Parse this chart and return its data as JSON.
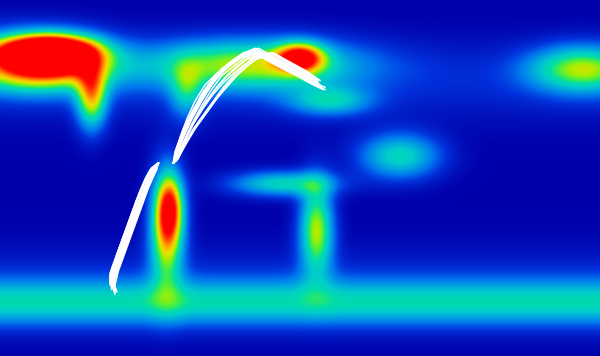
{
  "figsize": [
    6.0,
    3.56
  ],
  "dpi": 100,
  "background_color": "#000000",
  "ocean_cmap_nodes": [
    [
      0.0,
      "#000033"
    ],
    [
      0.12,
      "#000066"
    ],
    [
      0.22,
      "#0000aa"
    ],
    [
      0.32,
      "#0033dd"
    ],
    [
      0.4,
      "#0077ee"
    ],
    [
      0.48,
      "#00aadd"
    ],
    [
      0.54,
      "#00cccc"
    ],
    [
      0.6,
      "#00ddaa"
    ],
    [
      0.66,
      "#44ee44"
    ],
    [
      0.72,
      "#aaee00"
    ],
    [
      0.78,
      "#eedd00"
    ],
    [
      0.84,
      "#ffaa00"
    ],
    [
      0.9,
      "#ff6600"
    ],
    [
      0.96,
      "#ff2200"
    ],
    [
      1.0,
      "#ff0000"
    ]
  ],
  "atlantic_tracks": [
    [
      [
        -76,
        9
      ],
      [
        -74,
        14
      ],
      [
        -72,
        20
      ],
      [
        -68,
        28
      ],
      [
        -63,
        36
      ],
      [
        -57,
        43
      ],
      [
        -50,
        48
      ],
      [
        -43,
        52
      ],
      [
        -36,
        55
      ],
      [
        -28,
        57
      ],
      [
        -18,
        54
      ],
      [
        -8,
        50
      ],
      [
        2,
        46
      ]
    ],
    [
      [
        -76,
        9
      ],
      [
        -73,
        16
      ],
      [
        -69,
        24
      ],
      [
        -63,
        32
      ],
      [
        -57,
        40
      ],
      [
        -50,
        46
      ],
      [
        -43,
        51
      ],
      [
        -35,
        55
      ],
      [
        -25,
        57
      ],
      [
        -15,
        54
      ],
      [
        -4,
        50
      ],
      [
        6,
        46
      ]
    ],
    [
      [
        -76,
        9
      ],
      [
        -74,
        12
      ],
      [
        -70,
        18
      ],
      [
        -65,
        26
      ],
      [
        -59,
        34
      ],
      [
        -53,
        41
      ],
      [
        -47,
        47
      ],
      [
        -40,
        51
      ],
      [
        -33,
        55
      ],
      [
        -24,
        57
      ],
      [
        -14,
        53
      ],
      [
        -3,
        49
      ],
      [
        7,
        45
      ]
    ],
    [
      [
        -76,
        9
      ],
      [
        -75,
        13
      ],
      [
        -71,
        19
      ],
      [
        -66,
        27
      ],
      [
        -60,
        35
      ],
      [
        -54,
        42
      ],
      [
        -48,
        48
      ],
      [
        -42,
        52
      ],
      [
        -35,
        56
      ],
      [
        -26,
        58
      ],
      [
        -16,
        54
      ],
      [
        -5,
        50
      ],
      [
        5,
        46
      ],
      [
        12,
        43
      ]
    ],
    [
      [
        -76,
        9
      ],
      [
        -74,
        11
      ],
      [
        -71,
        16
      ],
      [
        -67,
        22
      ],
      [
        -62,
        29
      ],
      [
        -56,
        36
      ],
      [
        -50,
        42
      ],
      [
        -44,
        47
      ],
      [
        -38,
        51
      ],
      [
        -31,
        55
      ],
      [
        -22,
        56
      ],
      [
        -12,
        52
      ],
      [
        -2,
        48
      ],
      [
        8,
        44
      ]
    ],
    [
      [
        -76,
        9
      ],
      [
        -73,
        15
      ],
      [
        -69,
        22
      ],
      [
        -64,
        30
      ],
      [
        -58,
        38
      ],
      [
        -52,
        44
      ],
      [
        -46,
        49
      ],
      [
        -39,
        53
      ],
      [
        -31,
        57
      ],
      [
        -21,
        55
      ],
      [
        -11,
        51
      ],
      [
        -1,
        47
      ],
      [
        9,
        43
      ],
      [
        15,
        41
      ]
    ],
    [
      [
        -76,
        9
      ],
      [
        -75,
        10
      ],
      [
        -72,
        15
      ],
      [
        -68,
        21
      ],
      [
        -63,
        28
      ],
      [
        -57,
        35
      ],
      [
        -51,
        41
      ],
      [
        -45,
        46
      ],
      [
        -39,
        50
      ],
      [
        -32,
        54
      ],
      [
        -23,
        56
      ],
      [
        -13,
        52
      ],
      [
        -3,
        48
      ],
      [
        7,
        44
      ],
      [
        13,
        42
      ]
    ],
    [
      [
        -76,
        9
      ],
      [
        -74,
        13
      ],
      [
        -70,
        20
      ],
      [
        -65,
        28
      ],
      [
        -59,
        36
      ],
      [
        -53,
        43
      ],
      [
        -47,
        49
      ],
      [
        -41,
        53
      ],
      [
        -34,
        57
      ],
      [
        -25,
        59
      ],
      [
        -15,
        55
      ],
      [
        -4,
        51
      ],
      [
        6,
        47
      ]
    ],
    [
      [
        -76,
        9
      ],
      [
        -72,
        17
      ],
      [
        -67,
        26
      ],
      [
        -61,
        34
      ],
      [
        -55,
        41
      ],
      [
        -49,
        47
      ],
      [
        -43,
        51
      ],
      [
        -37,
        55
      ],
      [
        -28,
        58
      ],
      [
        -18,
        54
      ],
      [
        -8,
        50
      ],
      [
        2,
        46
      ],
      [
        10,
        43
      ]
    ],
    [
      [
        -76,
        9
      ],
      [
        -74,
        10
      ],
      [
        -71,
        14
      ],
      [
        -67,
        19
      ],
      [
        -62,
        25
      ],
      [
        -56,
        31
      ],
      [
        -50,
        37
      ],
      [
        -44,
        42
      ],
      [
        -38,
        47
      ],
      [
        -32,
        51
      ],
      [
        -25,
        55
      ],
      [
        -17,
        57
      ],
      [
        -7,
        53
      ],
      [
        3,
        49
      ],
      [
        11,
        45
      ]
    ],
    [
      [
        -76,
        9
      ],
      [
        -73,
        12
      ],
      [
        -69,
        18
      ],
      [
        -64,
        24
      ],
      [
        -58,
        30
      ],
      [
        -52,
        36
      ],
      [
        -46,
        42
      ],
      [
        -40,
        47
      ],
      [
        -34,
        51
      ],
      [
        -27,
        55
      ],
      [
        -18,
        57
      ],
      [
        -8,
        53
      ],
      [
        2,
        49
      ],
      [
        10,
        45
      ]
    ],
    [
      [
        -76,
        9
      ],
      [
        -74,
        16
      ],
      [
        -70,
        24
      ],
      [
        -64,
        32
      ],
      [
        -58,
        40
      ],
      [
        -52,
        46
      ],
      [
        -45,
        51
      ],
      [
        -38,
        55
      ],
      [
        -29,
        58
      ],
      [
        -19,
        54
      ],
      [
        -9,
        50
      ],
      [
        1,
        46
      ],
      [
        9,
        43
      ]
    ],
    [
      [
        -76,
        9
      ],
      [
        -75,
        14
      ],
      [
        -71,
        21
      ],
      [
        -66,
        29
      ],
      [
        -60,
        37
      ],
      [
        -54,
        43
      ],
      [
        -48,
        49
      ],
      [
        -41,
        53
      ],
      [
        -33,
        57
      ],
      [
        -23,
        55
      ],
      [
        -13,
        51
      ],
      [
        -2,
        47
      ],
      [
        8,
        43
      ],
      [
        14,
        41
      ]
    ],
    [
      [
        -76,
        9
      ],
      [
        -73,
        11
      ],
      [
        -69,
        17
      ],
      [
        -64,
        23
      ],
      [
        -58,
        29
      ],
      [
        -52,
        35
      ],
      [
        -46,
        41
      ],
      [
        -40,
        46
      ],
      [
        -34,
        50
      ],
      [
        -27,
        54
      ],
      [
        -18,
        56
      ],
      [
        -8,
        52
      ],
      [
        2,
        48
      ],
      [
        11,
        44
      ]
    ],
    [
      [
        -76,
        9
      ],
      [
        -74,
        15
      ],
      [
        -70,
        23
      ],
      [
        -65,
        31
      ],
      [
        -59,
        39
      ],
      [
        -53,
        45
      ],
      [
        -47,
        50
      ],
      [
        -40,
        54
      ],
      [
        -32,
        57
      ],
      [
        -22,
        55
      ],
      [
        -12,
        51
      ],
      [
        -1,
        47
      ],
      [
        8,
        44
      ],
      [
        15,
        42
      ]
    ],
    [
      [
        -76,
        9
      ],
      [
        -72,
        18
      ],
      [
        -67,
        27
      ],
      [
        -61,
        35
      ],
      [
        -55,
        42
      ],
      [
        -49,
        48
      ],
      [
        -43,
        52
      ],
      [
        -36,
        56
      ],
      [
        -27,
        59
      ],
      [
        -17,
        55
      ],
      [
        -7,
        51
      ],
      [
        3,
        47
      ],
      [
        11,
        44
      ]
    ],
    [
      [
        -76,
        9
      ],
      [
        -73,
        13
      ],
      [
        -69,
        19
      ],
      [
        -64,
        26
      ],
      [
        -58,
        33
      ],
      [
        -52,
        39
      ],
      [
        -46,
        44
      ],
      [
        -40,
        48
      ],
      [
        -33,
        52
      ],
      [
        -25,
        56
      ],
      [
        -16,
        57
      ],
      [
        -6,
        53
      ],
      [
        4,
        49
      ],
      [
        12,
        45
      ]
    ]
  ],
  "pacific_tracks": [
    [
      [
        -85,
        9
      ],
      [
        -88,
        7
      ],
      [
        -92,
        3
      ],
      [
        -95,
        -2
      ],
      [
        -98,
        -7
      ],
      [
        -101,
        -13
      ],
      [
        -104,
        -19
      ],
      [
        -107,
        -25
      ],
      [
        -110,
        -31
      ],
      [
        -113,
        -37
      ],
      [
        -114,
        -42
      ],
      [
        -112,
        -46
      ]
    ],
    [
      [
        -85,
        9
      ],
      [
        -87,
        6
      ],
      [
        -90,
        2
      ],
      [
        -93,
        -3
      ],
      [
        -96,
        -8
      ],
      [
        -99,
        -14
      ],
      [
        -102,
        -20
      ],
      [
        -105,
        -26
      ],
      [
        -108,
        -32
      ],
      [
        -111,
        -38
      ],
      [
        -113,
        -43
      ],
      [
        -110,
        -47
      ]
    ],
    [
      [
        -85,
        9
      ],
      [
        -88,
        6
      ],
      [
        -91,
        2
      ],
      [
        -94,
        -4
      ],
      [
        -97,
        -9
      ],
      [
        -100,
        -15
      ],
      [
        -103,
        -21
      ],
      [
        -106,
        -27
      ],
      [
        -109,
        -33
      ],
      [
        -112,
        -39
      ],
      [
        -113,
        -44
      ],
      [
        -111,
        -48
      ]
    ],
    [
      [
        -85,
        9
      ],
      [
        -87,
        7
      ],
      [
        -90,
        3
      ],
      [
        -93,
        -2
      ],
      [
        -96,
        -7
      ],
      [
        -99,
        -12
      ],
      [
        -102,
        -18
      ],
      [
        -105,
        -24
      ],
      [
        -108,
        -30
      ],
      [
        -111,
        -36
      ],
      [
        -114,
        -41
      ],
      [
        -113,
        -46
      ]
    ],
    [
      [
        -85,
        9
      ],
      [
        -89,
        5
      ],
      [
        -92,
        1
      ],
      [
        -95,
        -5
      ],
      [
        -98,
        -11
      ],
      [
        -101,
        -17
      ],
      [
        -104,
        -23
      ],
      [
        -107,
        -29
      ],
      [
        -110,
        -35
      ],
      [
        -112,
        -41
      ],
      [
        -111,
        -46
      ]
    ],
    [
      [
        -85,
        9
      ],
      [
        -88,
        5
      ],
      [
        -91,
        0
      ],
      [
        -94,
        -6
      ],
      [
        -97,
        -12
      ],
      [
        -100,
        -18
      ],
      [
        -103,
        -24
      ],
      [
        -106,
        -30
      ],
      [
        -109,
        -36
      ],
      [
        -112,
        -42
      ],
      [
        -110,
        -47
      ]
    ],
    [
      [
        -85,
        9
      ],
      [
        -87,
        8
      ],
      [
        -90,
        4
      ],
      [
        -93,
        -1
      ],
      [
        -96,
        -6
      ],
      [
        -99,
        -11
      ],
      [
        -102,
        -17
      ],
      [
        -105,
        -23
      ],
      [
        -108,
        -29
      ],
      [
        -111,
        -35
      ],
      [
        -114,
        -40
      ],
      [
        -112,
        -45
      ]
    ],
    [
      [
        -85,
        9
      ],
      [
        -89,
        6
      ],
      [
        -92,
        2
      ],
      [
        -95,
        -3
      ],
      [
        -98,
        -8
      ],
      [
        -101,
        -14
      ],
      [
        -104,
        -20
      ],
      [
        -107,
        -26
      ],
      [
        -110,
        -32
      ],
      [
        -113,
        -38
      ],
      [
        -113,
        -43
      ]
    ],
    [
      [
        -85,
        9
      ],
      [
        -88,
        4
      ],
      [
        -91,
        -1
      ],
      [
        -94,
        -7
      ],
      [
        -97,
        -13
      ],
      [
        -100,
        -19
      ],
      [
        -103,
        -25
      ],
      [
        -106,
        -31
      ],
      [
        -109,
        -37
      ],
      [
        -111,
        -43
      ]
    ],
    [
      [
        -85,
        9
      ],
      [
        -87,
        5
      ],
      [
        -90,
        1
      ],
      [
        -93,
        -4
      ],
      [
        -96,
        -9
      ],
      [
        -99,
        -15
      ],
      [
        -102,
        -21
      ],
      [
        -105,
        -27
      ],
      [
        -108,
        -33
      ],
      [
        -111,
        -39
      ],
      [
        -112,
        -44
      ]
    ],
    [
      [
        -85,
        9
      ],
      [
        -89,
        7
      ],
      [
        -92,
        3
      ],
      [
        -95,
        -2
      ],
      [
        -98,
        -7
      ],
      [
        -101,
        -13
      ],
      [
        -104,
        -19
      ],
      [
        -107,
        -25
      ],
      [
        -110,
        -31
      ],
      [
        -112,
        -37
      ],
      [
        -113,
        -42
      ],
      [
        -111,
        -47
      ]
    ],
    [
      [
        -85,
        9
      ],
      [
        -88,
        3
      ],
      [
        -91,
        -2
      ],
      [
        -94,
        -8
      ],
      [
        -97,
        -14
      ],
      [
        -100,
        -20
      ],
      [
        -103,
        -26
      ],
      [
        -106,
        -32
      ],
      [
        -109,
        -38
      ],
      [
        -111,
        -44
      ]
    ],
    [
      [
        -85,
        9
      ],
      [
        -86,
        6
      ],
      [
        -89,
        2
      ],
      [
        -92,
        -3
      ],
      [
        -95,
        -8
      ],
      [
        -98,
        -14
      ],
      [
        -101,
        -20
      ],
      [
        -104,
        -26
      ],
      [
        -107,
        -32
      ],
      [
        -110,
        -38
      ],
      [
        -112,
        -43
      ]
    ],
    [
      [
        -85,
        9
      ],
      [
        -90,
        6
      ],
      [
        -93,
        2
      ],
      [
        -96,
        -3
      ],
      [
        -99,
        -9
      ],
      [
        -102,
        -15
      ],
      [
        -105,
        -21
      ],
      [
        -108,
        -27
      ],
      [
        -111,
        -33
      ],
      [
        -114,
        -39
      ],
      [
        -114,
        -44
      ]
    ]
  ],
  "xlim": [
    -180,
    180
  ],
  "ylim": [
    -75,
    80
  ],
  "map_extent": [
    -180,
    180,
    -75,
    80
  ]
}
